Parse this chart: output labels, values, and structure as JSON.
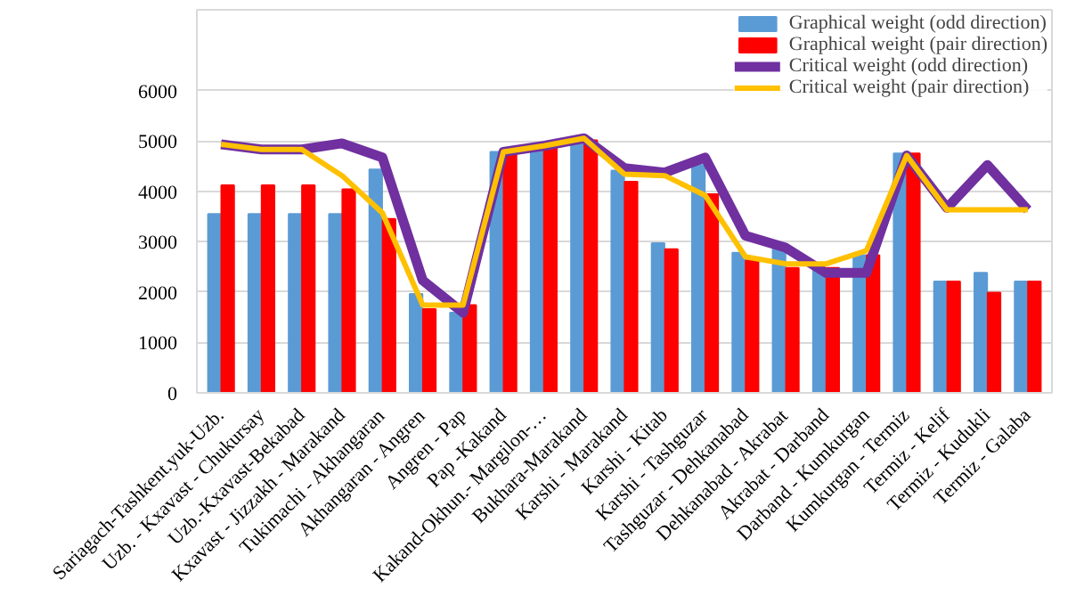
{
  "chart_data": {
    "type": "bar",
    "categories": [
      "Sariagach-Tashkent.yuk-Uzb.",
      "Uzb. - Kxavast - Chukursay",
      "Uzb.-Kxavast-Bekabad",
      "Kxavast - Jizzakh - Marakand",
      "Tukimachi - Akhangaran",
      "Akhangaran - Angren",
      "Angren - Pap",
      "Pap -Kakand",
      "Kakand-Okhun.- Margilon-…",
      "Bukhara-Marakand",
      "Karshi - Marakand",
      "Karshi - Kitab",
      "Karshi - Tashguzar",
      "Tashguzar - Dehkanabad",
      "Dehkanabad - Akrabat",
      "Akrabat - Darband",
      "Darband - Kumkurgan",
      "Kumkurgan - Termiz",
      "Termiz - Kelif",
      "Termiz - Kudukli",
      "Termiz - Galaba"
    ],
    "series": [
      {
        "name": "Graphical weight (odd direction)",
        "color": "#5b9bd5",
        "values": [
          3550,
          3550,
          3550,
          3550,
          4430,
          1960,
          1590,
          4780,
          4830,
          5010,
          4410,
          2970,
          4520,
          2780,
          2850,
          2480,
          2730,
          4750,
          2210,
          2380,
          2210
        ]
      },
      {
        "name": "Graphical weight (pair direction)",
        "color": "#ff0000",
        "values": [
          4120,
          4120,
          4120,
          4040,
          3450,
          1660,
          1740,
          4780,
          4900,
          5010,
          4190,
          2850,
          3940,
          2630,
          2480,
          2480,
          2730,
          4750,
          2210,
          1990,
          2210
        ]
      },
      {
        "name": "Critical weight (odd direction)",
        "type": "line",
        "color": "#7030a0",
        "values": [
          4930,
          4830,
          4830,
          4950,
          4670,
          2230,
          1590,
          4780,
          4900,
          5050,
          4460,
          4370,
          4670,
          3120,
          2880,
          2380,
          2380,
          4710,
          3670,
          4520,
          3630
        ]
      },
      {
        "name": "Critical weight (pair direction)",
        "type": "line",
        "color": "#ffc000",
        "values": [
          4930,
          4830,
          4830,
          4310,
          3570,
          1740,
          1740,
          4780,
          4900,
          5050,
          4340,
          4310,
          3920,
          2700,
          2560,
          2560,
          2820,
          4710,
          3630,
          3630,
          3630
        ]
      }
    ],
    "ylim": [
      0,
      7600
    ],
    "yticks": [
      0,
      1000,
      2000,
      3000,
      4000,
      5000,
      6000
    ],
    "grid": "y",
    "legend": "top right"
  }
}
